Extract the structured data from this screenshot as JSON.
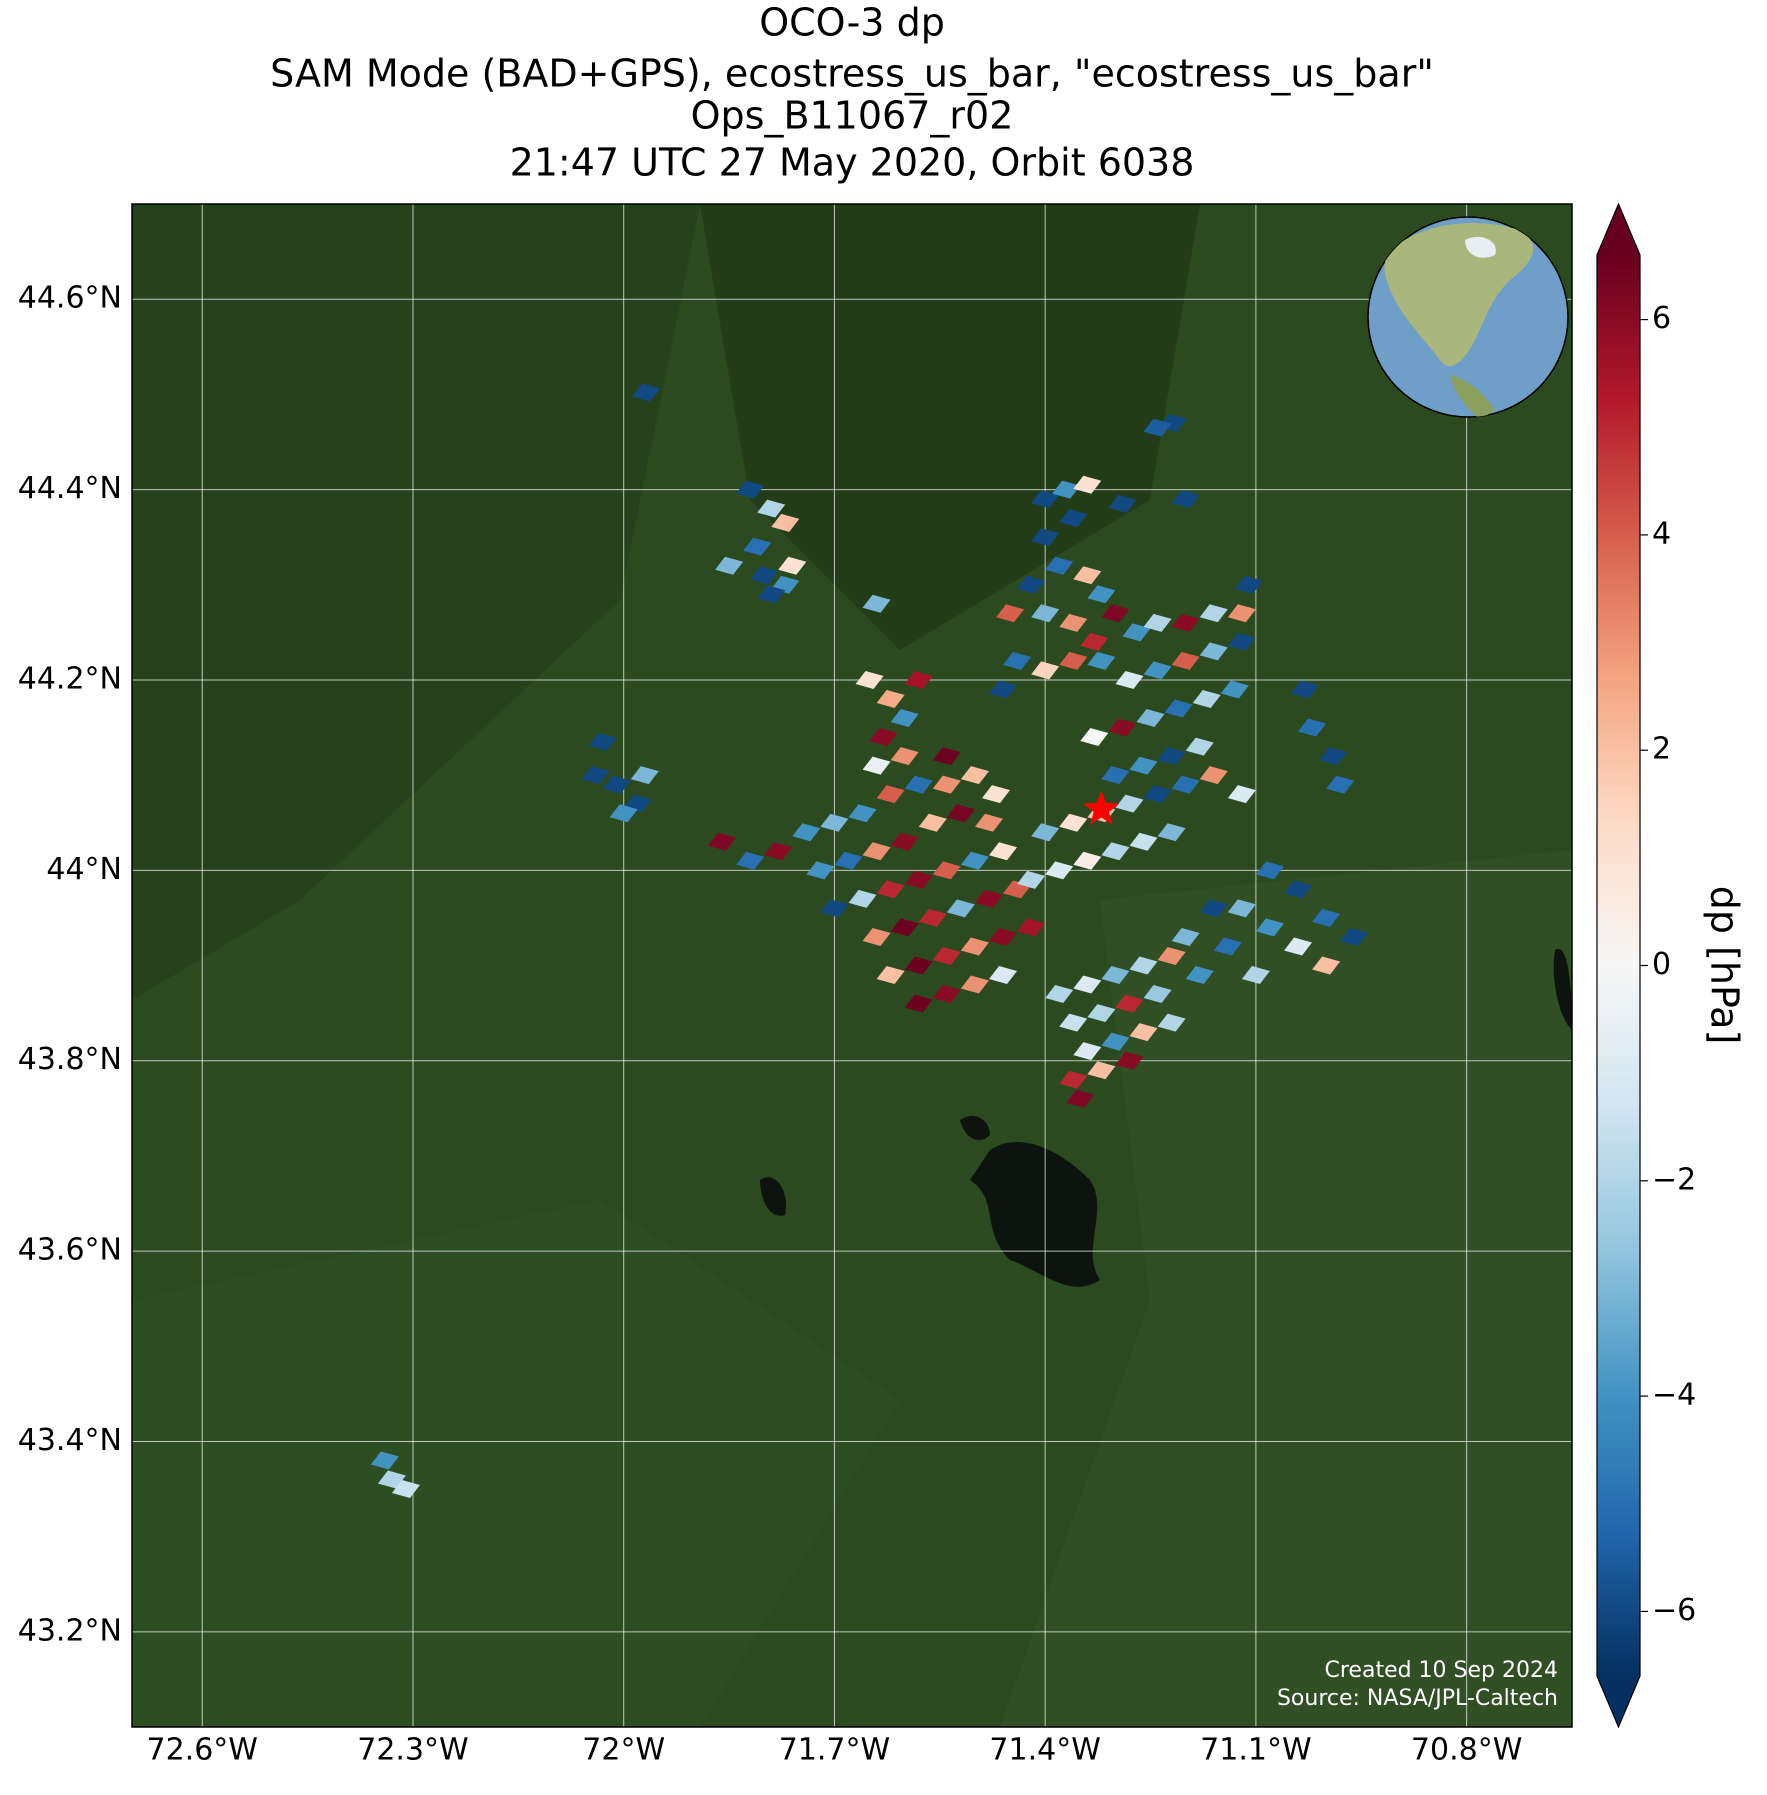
{
  "chart_data": {
    "type": "scatter",
    "title": [
      "OCO-3 dp",
      "SAM Mode (BAD+GPS), ecostress_us_bar, \"ecostress_us_bar\"",
      "Ops_B11067_r02",
      "21:47 UTC 27 May 2020, Orbit 6038"
    ],
    "xlim": [
      -72.7,
      -70.65
    ],
    "ylim": [
      43.1,
      44.7
    ],
    "xticks": [
      {
        "value": -72.6,
        "label": "72.6°W"
      },
      {
        "value": -72.3,
        "label": "72.3°W"
      },
      {
        "value": -72,
        "label": "72°W"
      },
      {
        "value": -71.7,
        "label": "71.7°W"
      },
      {
        "value": -71.4,
        "label": "71.4°W"
      },
      {
        "value": -71.1,
        "label": "71.1°W"
      },
      {
        "value": -70.8,
        "label": "70.8°W"
      }
    ],
    "yticks": [
      {
        "value": 43.2,
        "label": "43.2°N"
      },
      {
        "value": 43.4,
        "label": "43.4°N"
      },
      {
        "value": 43.6,
        "label": "43.6°N"
      },
      {
        "value": 43.8,
        "label": "43.8°N"
      },
      {
        "value": 44,
        "label": "44°N"
      },
      {
        "value": 44.2,
        "label": "44.2°N"
      },
      {
        "value": 44.4,
        "label": "44.4°N"
      },
      {
        "value": 44.6,
        "label": "44.6°N"
      }
    ],
    "grid": true,
    "lon": [
      -71.968,
      -71.218,
      -71.24,
      -71.4,
      -71.37,
      -71.34,
      -71.36,
      -71.4,
      -71.29,
      -71.2,
      -71.38,
      -71.34,
      -71.32,
      -71.42,
      -71.45,
      -71.4,
      -71.36,
      -71.33,
      -71.3,
      -71.27,
      -71.44,
      -71.4,
      -71.36,
      -71.32,
      -71.46,
      -71.82,
      -71.79,
      -71.77,
      -71.81,
      -71.85,
      -71.8,
      -71.76,
      -71.77,
      -71.79,
      -71.64,
      -71.65,
      -71.62,
      -71.58,
      -71.6,
      -71.63,
      -71.6,
      -71.64,
      -71.54,
      -72.03,
      -72.04,
      -72.01,
      -71.97,
      -71.98,
      -72.0,
      -71.86,
      -71.82,
      -71.78,
      -71.74,
      -71.7,
      -71.66,
      -71.62,
      -71.58,
      -71.54,
      -71.5,
      -71.47,
      -71.72,
      -71.68,
      -71.64,
      -71.6,
      -71.56,
      -71.52,
      -71.48,
      -71.7,
      -71.66,
      -71.62,
      -71.58,
      -71.54,
      -71.5,
      -71.46,
      -71.64,
      -71.6,
      -71.56,
      -71.52,
      -71.48,
      -71.44,
      -71.62,
      -71.58,
      -71.54,
      -71.5,
      -71.46,
      -71.42,
      -71.58,
      -71.54,
      -71.5,
      -71.46,
      -71.42,
      -71.38,
      -71.34,
      -71.3,
      -71.26,
      -71.22,
      -71.4,
      -71.36,
      -71.32,
      -71.28,
      -71.24,
      -71.2,
      -71.16,
      -71.12,
      -71.3,
      -71.26,
      -71.22,
      -71.18,
      -71.33,
      -71.29,
      -71.25,
      -71.21,
      -71.17,
      -71.13,
      -71.28,
      -71.24,
      -71.2,
      -71.16,
      -71.12,
      -71.2,
      -71.16,
      -71.12,
      -71.24,
      -71.11,
      -71.03,
      -71.02,
      -70.99,
      -70.98,
      -71.08,
      -71.04,
      -71.0,
      -70.96,
      -71.12,
      -71.08,
      -71.04,
      -71.0,
      -71.14,
      -71.1,
      -71.2,
      -71.18,
      -71.16,
      -71.38,
      -71.34,
      -71.3,
      -71.26,
      -71.22,
      -71.36,
      -71.32,
      -71.28,
      -71.24,
      -71.34,
      -71.3,
      -71.26,
      -71.22,
      -71.36,
      -71.32,
      -71.28,
      -71.35,
      -72.34,
      -72.33,
      -72.31
    ],
    "lat": [
      44.502,
      44.47,
      44.465,
      44.39,
      44.4,
      44.405,
      44.37,
      44.35,
      44.385,
      44.39,
      44.32,
      44.31,
      44.29,
      44.3,
      44.27,
      44.27,
      44.26,
      44.24,
      44.27,
      44.25,
      44.22,
      44.21,
      44.22,
      44.22,
      44.19,
      44.4,
      44.38,
      44.365,
      44.34,
      44.32,
      44.31,
      44.32,
      44.3,
      44.29,
      44.28,
      44.2,
      44.18,
      44.2,
      44.16,
      44.14,
      44.12,
      44.11,
      44.12,
      44.135,
      44.1,
      44.09,
      44.1,
      44.07,
      44.06,
      44.03,
      44.01,
      44.02,
      44.04,
      44.05,
      44.06,
      44.08,
      44.09,
      44.09,
      44.1,
      44.08,
      44.0,
      44.01,
      44.02,
      44.03,
      44.05,
      44.06,
      44.05,
      43.96,
      43.97,
      43.98,
      43.99,
      44.0,
      44.01,
      44.02,
      43.93,
      43.94,
      43.95,
      43.96,
      43.97,
      43.98,
      43.89,
      43.9,
      43.91,
      43.92,
      43.93,
      43.94,
      43.86,
      43.87,
      43.88,
      43.89,
      43.99,
      44.0,
      44.01,
      44.02,
      44.03,
      44.04,
      44.04,
      44.05,
      44.06,
      44.07,
      44.08,
      44.09,
      44.1,
      44.08,
      44.1,
      44.11,
      44.12,
      44.13,
      44.14,
      44.15,
      44.16,
      44.17,
      44.18,
      44.19,
      44.2,
      44.21,
      44.22,
      44.23,
      44.24,
      44.26,
      44.27,
      44.27,
      44.26,
      44.3,
      44.19,
      44.15,
      44.12,
      44.09,
      44.0,
      43.98,
      43.95,
      43.93,
      43.96,
      43.94,
      43.92,
      43.9,
      43.92,
      43.89,
      43.93,
      43.89,
      43.96,
      43.87,
      43.88,
      43.89,
      43.9,
      43.91,
      43.84,
      43.85,
      43.86,
      43.87,
      43.81,
      43.82,
      43.83,
      43.84,
      43.78,
      43.79,
      43.8,
      43.76,
      43.38,
      43.36,
      43.35
    ],
    "values": [
      -6,
      -6,
      -5.5,
      -6,
      -4,
      1,
      -6,
      -6,
      -6,
      -6,
      -5,
      2,
      -4,
      -6,
      4,
      -3,
      3,
      5,
      6.2,
      -4,
      -5,
      1.5,
      4,
      -4,
      -6,
      -6,
      -2,
      2,
      -5,
      -3,
      -6,
      1,
      -4,
      -6,
      -3,
      1,
      2.5,
      5.5,
      -4,
      6,
      3,
      -0.5,
      6.5,
      -6,
      -6,
      -6,
      -3,
      -6,
      -4,
      6.2,
      -5,
      6,
      -4,
      -3,
      -4,
      4,
      -5,
      3,
      2,
      1,
      -4,
      -5,
      3,
      6,
      2,
      6.3,
      3,
      -6,
      -2,
      5,
      6,
      4,
      -4,
      1,
      3,
      6.5,
      5,
      -3,
      6,
      4,
      2,
      6.5,
      5,
      3,
      6,
      5.5,
      6.5,
      6,
      3,
      -1,
      -2,
      -1,
      0.5,
      -2,
      -1.5,
      -3,
      -3,
      1,
      2,
      -2,
      -6,
      -5,
      3,
      -1,
      -5,
      -4,
      -6,
      -2,
      0,
      6,
      -3,
      -5,
      -2,
      -4,
      -1,
      -4,
      4,
      -3,
      -6,
      6,
      -2,
      3,
      -2,
      -6,
      -6,
      -5,
      -6,
      -5,
      -5,
      -6,
      -5,
      -6,
      -3,
      -4,
      -1,
      2,
      -5,
      -2,
      -3,
      -4,
      -6,
      -2,
      -1,
      -3,
      -2,
      3,
      -1.5,
      -2,
      5,
      -2.5,
      -1,
      -4,
      2,
      -2,
      5,
      2,
      6,
      6.2,
      -4,
      -2,
      -1.5
    ],
    "target": {
      "lon": -71.32,
      "lat": 44.064,
      "color": "#ff0000"
    },
    "colorbar": {
      "label": "dp [hPa]",
      "clim": [
        -6.6,
        6.6
      ],
      "ticks": [
        {
          "value": -6,
          "label": "−6"
        },
        {
          "value": -4,
          "label": "−4"
        },
        {
          "value": -2,
          "label": "−2"
        },
        0,
        2,
        4,
        6
      ],
      "colors": [
        "#053061",
        "#2166ac",
        "#4393c3",
        "#92c5de",
        "#d1e5f0",
        "#f7f7f7",
        "#fddbc7",
        "#f4a582",
        "#d6604d",
        "#b2182b",
        "#67001f"
      ],
      "extend": "both"
    },
    "credits": [
      "Created 10 Sep 2024",
      "Source: NASA/JPL-Caltech"
    ]
  }
}
